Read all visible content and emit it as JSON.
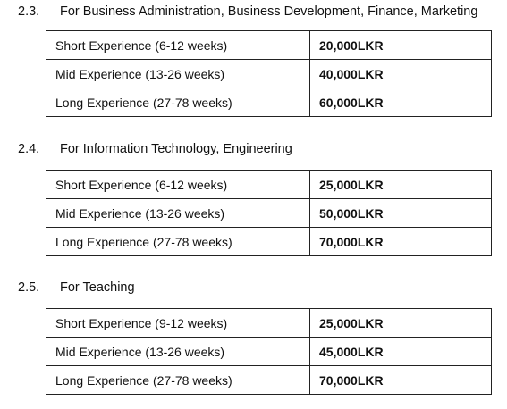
{
  "sections": [
    {
      "number": "2.3.",
      "title": "For Business Administration, Business Development, Finance, Marketing",
      "rows": [
        {
          "label": "Short Experience (6-12 weeks)",
          "price": "20,000LKR"
        },
        {
          "label": "Mid Experience (13-26 weeks)",
          "price": "40,000LKR"
        },
        {
          "label": "Long Experience (27-78 weeks)",
          "price": "60,000LKR"
        }
      ]
    },
    {
      "number": "2.4.",
      "title": "For Information Technology, Engineering",
      "rows": [
        {
          "label": "Short Experience (6-12 weeks)",
          "price": "25,000LKR"
        },
        {
          "label": "Mid Experience (13-26 weeks)",
          "price": "50,000LKR"
        },
        {
          "label": "Long Experience (27-78 weeks)",
          "price": "70,000LKR"
        }
      ]
    },
    {
      "number": "2.5.",
      "title": "For Teaching",
      "rows": [
        {
          "label": "Short Experience (9-12 weeks)",
          "price": "25,000LKR"
        },
        {
          "label": "Mid Experience (13-26 weeks)",
          "price": "45,000LKR"
        },
        {
          "label": "Long Experience (27-78 weeks)",
          "price": "70,000LKR"
        }
      ]
    }
  ]
}
